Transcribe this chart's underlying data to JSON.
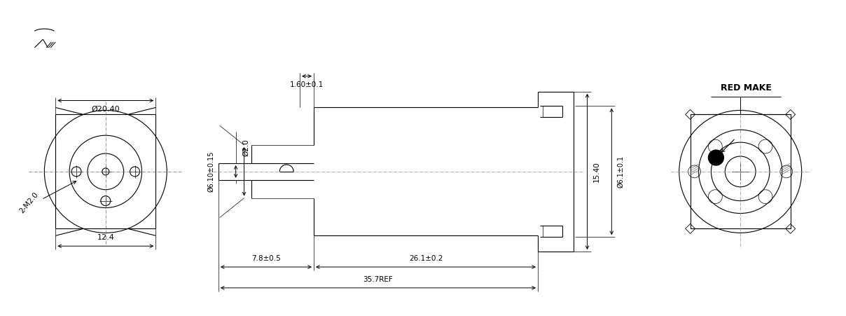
{
  "bg_color": "#ffffff",
  "line_color": "#000000",
  "lw": 0.8,
  "tlw": 0.5,
  "fig_width": 12.08,
  "fig_height": 4.51,
  "labels": {
    "phi2040": "Ø20.40",
    "phi2": "Ø2.0",
    "phi610": "Ø6.10±0.15",
    "phi61": "Ø6.1±0.1",
    "dim124": "12.4",
    "dim160": "1.60±0.1",
    "dim78": "7.8±0.5",
    "dim261": "26.1±0.2",
    "dim357": "35.7REF",
    "dim1540": "15.40",
    "dim2m2": "2-M2.0",
    "red_make": "RED MAKE"
  }
}
